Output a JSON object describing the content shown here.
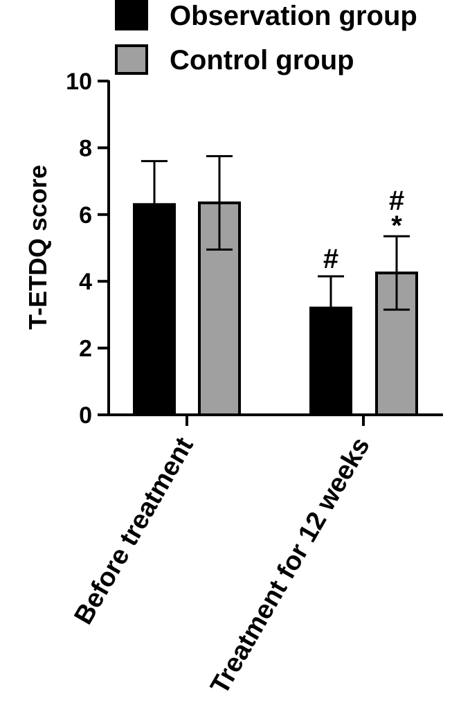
{
  "chart_data": {
    "type": "bar",
    "ylabel": "T-ETDQ score",
    "ylim": [
      0,
      10
    ],
    "yticks": [
      0,
      2,
      4,
      6,
      8,
      10
    ],
    "categories": [
      "Before treatment",
      "Treatment for 12 weeks"
    ],
    "series": [
      {
        "name": "Observation group",
        "color": "#000000",
        "values": [
          6.3,
          3.2
        ],
        "errors": [
          1.3,
          0.95
        ],
        "annotations": [
          "",
          "#"
        ]
      },
      {
        "name": "Control group",
        "color": "#a0a0a0",
        "values": [
          6.35,
          4.25
        ],
        "errors": [
          1.4,
          1.1
        ],
        "annotations": [
          "",
          "#\n*"
        ]
      }
    ],
    "legend": "top"
  }
}
